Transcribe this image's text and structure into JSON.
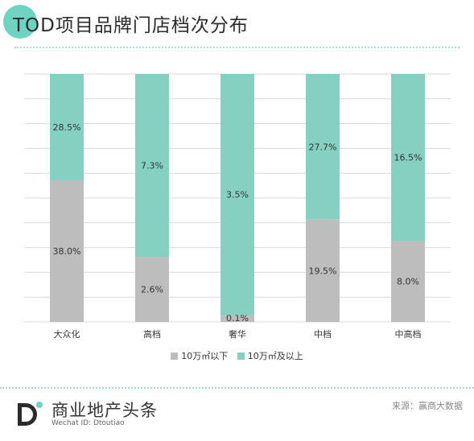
{
  "title": "TOD项目品牌门店档次分布",
  "colors": {
    "series_small": "#bdbdbd",
    "series_large": "#86d0c1",
    "title_dot": "#6fd3c2",
    "grid": "#d9d9d9"
  },
  "chart_data": {
    "type": "bar",
    "stacked": true,
    "percent_stacked": true,
    "categories": [
      "大众化",
      "高档",
      "奢华",
      "中档",
      "中高档"
    ],
    "series": [
      {
        "name": "10万㎡以下",
        "values": [
          38.0,
          2.6,
          0.1,
          19.5,
          8.0
        ],
        "labels": [
          "38.0%",
          "2.6%",
          "0.1%",
          "19.5%",
          "8.0%"
        ]
      },
      {
        "name": "10万㎡及以上",
        "values": [
          28.5,
          7.3,
          3.5,
          27.7,
          16.5
        ],
        "labels": [
          "28.5%",
          "7.3%",
          "3.5%",
          "27.7%",
          "16.5%"
        ]
      }
    ],
    "ylim": [
      0,
      100
    ],
    "grid": true,
    "legend": "bottom"
  },
  "legend": {
    "small": "10万㎡以下",
    "large": "10万㎡及以上"
  },
  "footer": {
    "brand": "商业地产头条",
    "wechat": "Wechat ID: Dtoutiao",
    "source": "来源：赢商大数据"
  }
}
